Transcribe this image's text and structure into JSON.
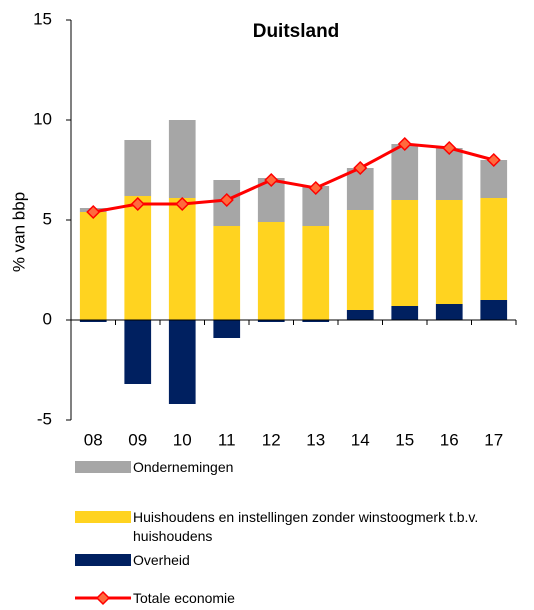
{
  "chart_data": {
    "type": "bar",
    "title": "Duitsland",
    "y_label": "% van bbp",
    "categories": [
      "08",
      "09",
      "10",
      "11",
      "12",
      "13",
      "14",
      "15",
      "16",
      "17"
    ],
    "series": [
      {
        "name": "Ondernemingen",
        "color": "#a6a6a6",
        "values": [
          0.2,
          2.8,
          3.9,
          2.3,
          2.2,
          2.0,
          2.1,
          2.8,
          2.6,
          1.9
        ]
      },
      {
        "name": "Huishoudens en instellingen zonder winstoogmerk t.b.v. huishoudens",
        "color": "#ffd320",
        "values": [
          5.4,
          6.2,
          6.1,
          4.7,
          4.9,
          4.7,
          5.0,
          5.3,
          5.2,
          5.1
        ]
      },
      {
        "name": "Overheid",
        "color": "#002060",
        "values": [
          -0.1,
          -3.2,
          -4.2,
          -0.9,
          -0.1,
          -0.1,
          0.5,
          0.7,
          0.8,
          1.0
        ]
      },
      {
        "name": "Totale economie",
        "type": "line",
        "color": "#ff0000",
        "values": [
          5.4,
          5.8,
          5.8,
          6.0,
          7.0,
          6.6,
          7.6,
          8.8,
          8.6,
          8.0
        ]
      }
    ],
    "ylim": [
      -5,
      15
    ],
    "yticks": [
      -5,
      0,
      5,
      10,
      15
    ]
  }
}
